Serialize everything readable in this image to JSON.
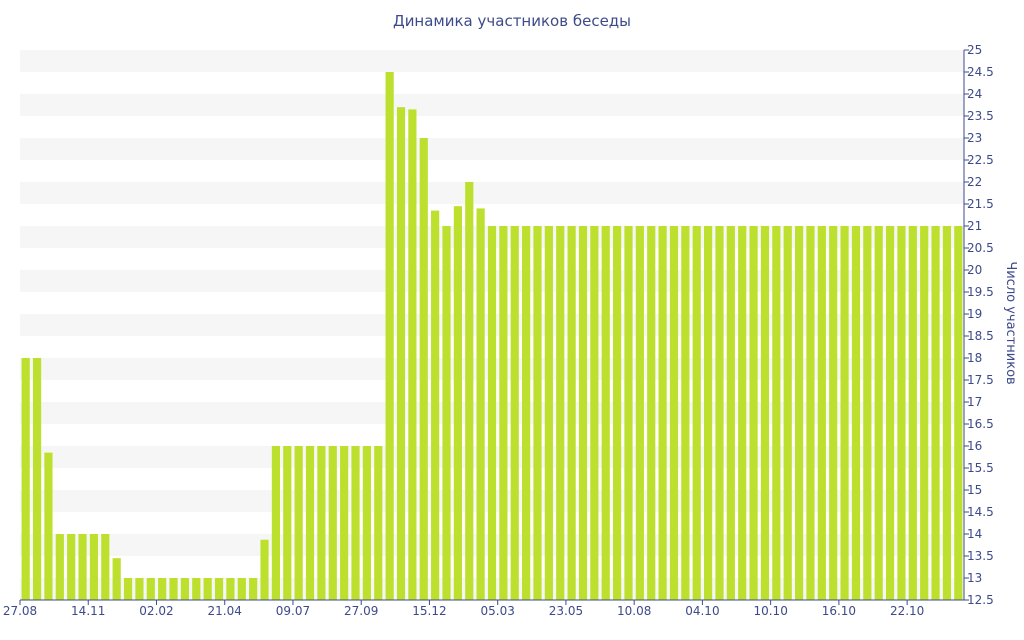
{
  "chart_data": {
    "type": "bar",
    "title": "Динамика участников беседы",
    "xlabel": "",
    "ylabel": "Число участников",
    "ylim": [
      12.5,
      25
    ],
    "y_ticks": [
      12.5,
      13,
      13.5,
      14,
      14.5,
      15,
      15.5,
      16,
      16.5,
      17,
      17.5,
      18,
      18.5,
      19,
      19.5,
      20,
      20.5,
      21,
      21.5,
      22,
      22.5,
      23,
      23.5,
      24,
      24.5,
      25
    ],
    "y_axis_position": "right",
    "grid": "alternating horizontal bands",
    "bar_color": "#bde02e",
    "text_color": "#3d4a8a",
    "x_tick_labels": [
      {
        "label": "27.08",
        "index": 0
      },
      {
        "label": "14.11",
        "index": 6
      },
      {
        "label": "02.02",
        "index": 12
      },
      {
        "label": "21.04",
        "index": 18
      },
      {
        "label": "09.07",
        "index": 24
      },
      {
        "label": "27.09",
        "index": 30
      },
      {
        "label": "15.12",
        "index": 36
      },
      {
        "label": "05.03",
        "index": 42
      },
      {
        "label": "23.05",
        "index": 48
      },
      {
        "label": "10.08",
        "index": 54
      },
      {
        "label": "04.10",
        "index": 60
      },
      {
        "label": "10.10",
        "index": 66
      },
      {
        "label": "16.10",
        "index": 72
      },
      {
        "label": "22.10",
        "index": 78
      }
    ],
    "values": [
      18,
      18,
      15.85,
      14,
      14,
      14,
      14,
      14,
      13.45,
      13,
      13,
      13,
      13,
      13,
      13,
      13,
      13,
      13,
      13,
      13,
      13,
      13.87,
      16,
      16,
      16,
      16,
      16,
      16,
      16,
      16,
      16,
      16,
      24.5,
      23.7,
      23.65,
      23,
      21.35,
      21,
      21.45,
      22,
      21.4,
      21,
      21,
      21,
      21,
      21,
      21,
      21,
      21,
      21,
      21,
      21,
      21,
      21,
      21,
      21,
      21,
      21,
      21,
      21,
      21,
      21,
      21,
      21,
      21,
      21,
      21,
      21,
      21,
      21,
      21,
      21,
      21,
      21,
      21,
      21,
      21,
      21,
      21,
      21,
      21,
      21,
      21
    ]
  }
}
